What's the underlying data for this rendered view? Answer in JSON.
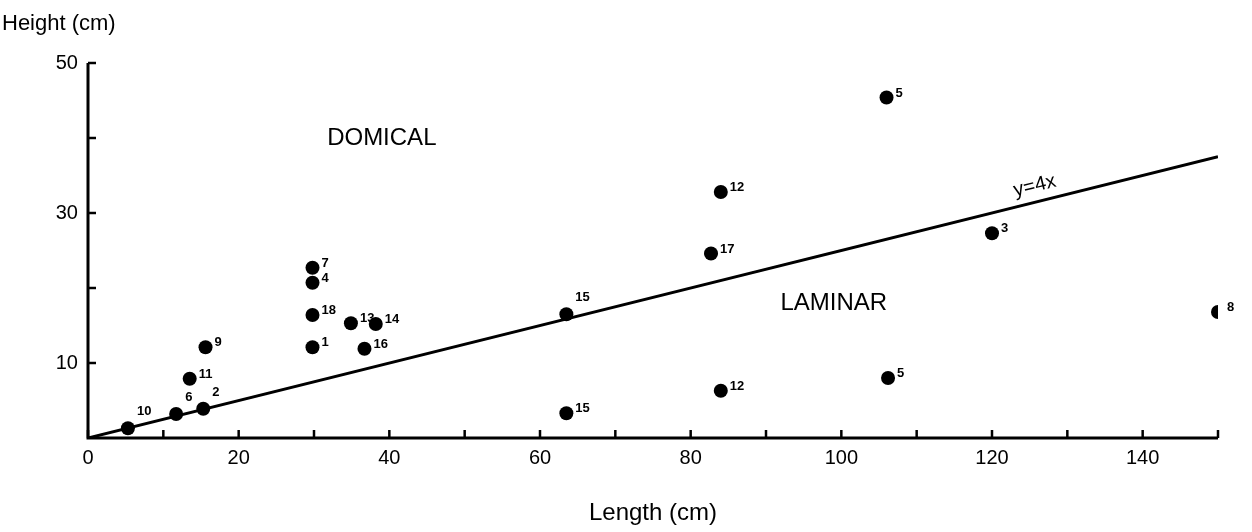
{
  "chart_data": {
    "type": "scatter",
    "xlabel": "Length (cm)",
    "ylabel": "Height (cm)",
    "xlim": [
      0,
      150
    ],
    "ylim": [
      0,
      50
    ],
    "xticks": [
      0,
      {
        "value": 10,
        "label": null
      },
      20,
      {
        "value": 30,
        "label": null
      },
      40,
      {
        "value": 50,
        "label": null
      },
      60,
      {
        "value": 70,
        "label": null
      },
      80,
      {
        "value": 90,
        "label": null
      },
      100,
      {
        "value": 110,
        "label": null
      },
      120,
      {
        "value": 130,
        "label": null
      },
      140,
      {
        "value": 150,
        "label": null
      }
    ],
    "yticks": [
      10,
      {
        "value": 20,
        "label": null
      },
      30,
      {
        "value": 40,
        "label": null
      },
      50
    ],
    "grid": false,
    "legend": false,
    "marker": "circle",
    "series": [
      {
        "type": "scatter",
        "color": "#000000",
        "x": [
          5.3,
          11.7,
          15.3,
          13.5,
          15.6,
          29.8,
          29.8,
          29.8,
          29.8,
          34.9,
          38.2,
          36.7,
          63.5,
          63.5,
          82.7,
          84,
          84,
          106,
          106.2,
          120,
          150
        ],
        "values": [
          1.3,
          3.2,
          3.9,
          7.9,
          12.1,
          22.7,
          20.7,
          16.4,
          12.1,
          15.3,
          15.2,
          11.9,
          16.5,
          3.3,
          24.6,
          32.8,
          6.3,
          45.4,
          8,
          27.3,
          16.8
        ]
      },
      {
        "type": "line",
        "name": "y=4x",
        "color": "#000000",
        "marker": "none",
        "line_style": "solid",
        "x": [
          0,
          150
        ],
        "values": [
          0,
          37.5
        ]
      }
    ],
    "annotations": [
      "DOMICAL",
      "LAMINAR",
      {
        "text": "10",
        "x": 5.3,
        "y": 1.3
      },
      {
        "text": "6",
        "x": 11.7,
        "y": 3.2
      },
      {
        "text": "2",
        "x": 15.3,
        "y": 3.9
      },
      {
        "text": "11",
        "x": 13.5,
        "y": 7.9
      },
      {
        "text": "9",
        "x": 15.6,
        "y": 12.1
      },
      {
        "text": "7",
        "x": 29.8,
        "y": 22.7
      },
      {
        "text": "4",
        "x": 29.8,
        "y": 20.7
      },
      {
        "text": "18",
        "x": 29.8,
        "y": 16.4
      },
      {
        "text": "1",
        "x": 29.8,
        "y": 12.1
      },
      {
        "text": "13",
        "x": 34.9,
        "y": 15.3
      },
      {
        "text": "14",
        "x": 38.2,
        "y": 15.2
      },
      {
        "text": "16",
        "x": 36.7,
        "y": 11.9
      },
      {
        "text": "15",
        "x": 63.5,
        "y": 16.5
      },
      {
        "text": "15",
        "x": 63.5,
        "y": 3.3
      },
      {
        "text": "17",
        "x": 82.7,
        "y": 24.6
      },
      {
        "text": "12",
        "x": 84,
        "y": 32.8
      },
      {
        "text": "12",
        "x": 84,
        "y": 6.3
      },
      {
        "text": "5",
        "x": 106,
        "y": 45.4
      },
      {
        "text": "5",
        "x": 106.2,
        "y": 8
      },
      {
        "text": "3",
        "x": 120,
        "y": 27.3
      },
      {
        "text": "8",
        "x": 150,
        "y": 16.8
      }
    ]
  }
}
